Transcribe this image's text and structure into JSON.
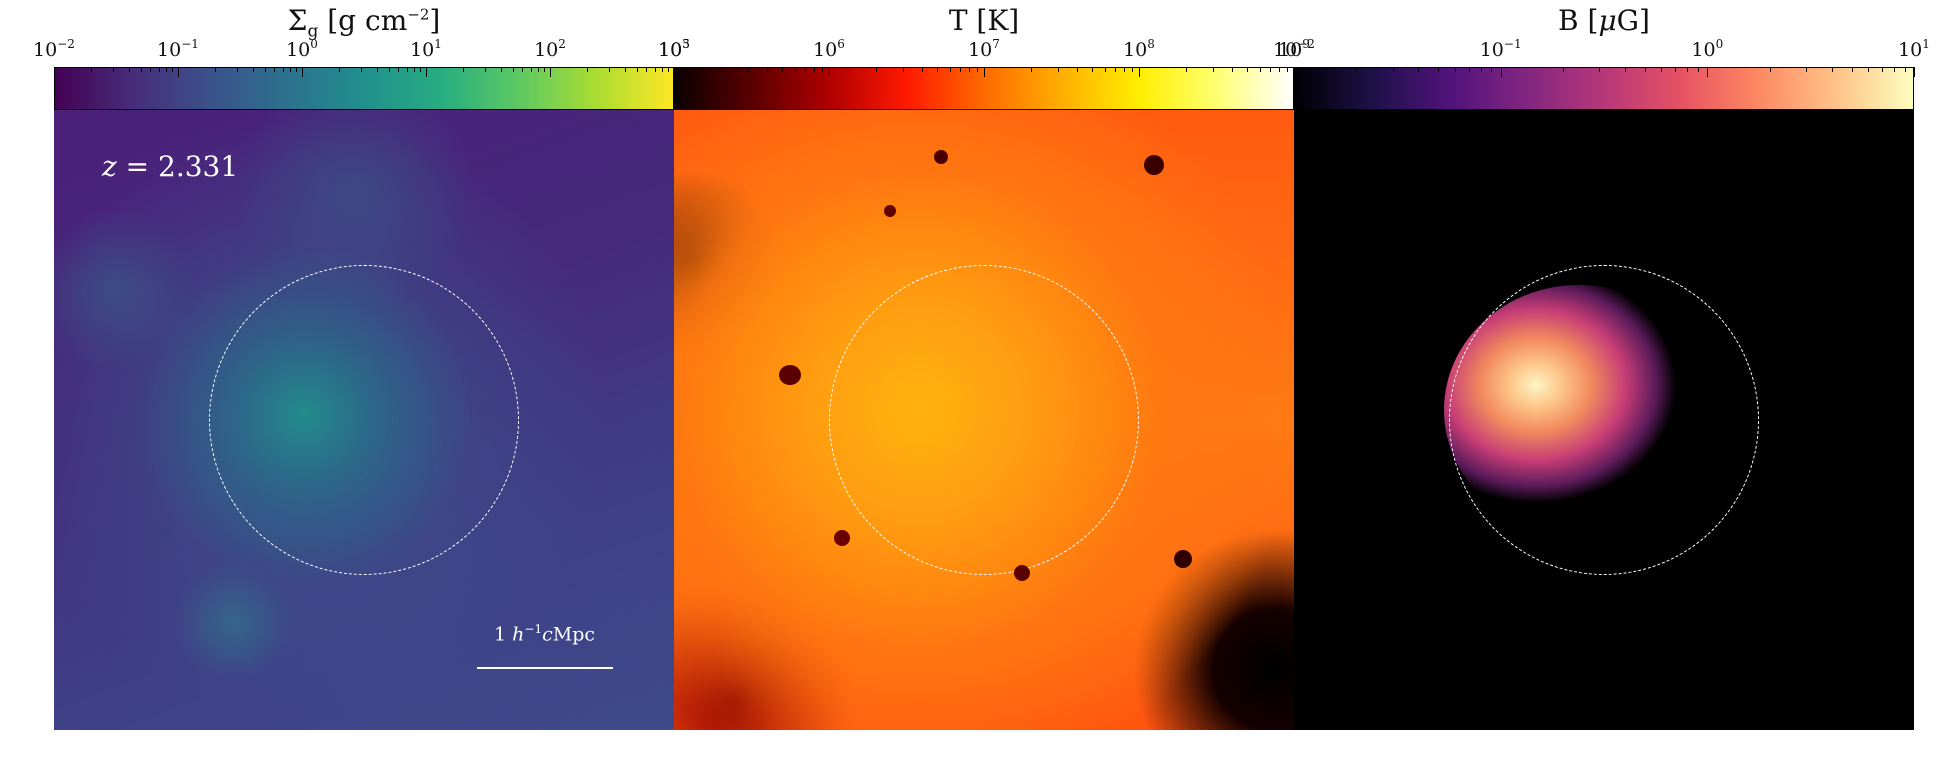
{
  "colorbars": {
    "gas": {
      "title": "Σ",
      "title_sub": "g",
      "title_rest": " [g cm",
      "title_exp": "−2",
      "title_end": "]",
      "ticks": [
        {
          "base": "10",
          "exp": "−2"
        },
        {
          "base": "10",
          "exp": "−1"
        },
        {
          "base": "10",
          "exp": "0"
        },
        {
          "base": "10",
          "exp": "1"
        },
        {
          "base": "10",
          "exp": "2"
        },
        {
          "base": "10",
          "exp": "3"
        }
      ],
      "cmap": "viridis",
      "range": [
        0.01,
        1000
      ]
    },
    "temp": {
      "title": "T [K]",
      "ticks": [
        {
          "base": "10",
          "exp": "5"
        },
        {
          "base": "10",
          "exp": "6"
        },
        {
          "base": "10",
          "exp": "7"
        },
        {
          "base": "10",
          "exp": "8"
        },
        {
          "base": "10",
          "exp": "9"
        }
      ],
      "cmap": "hot",
      "range": [
        100000,
        1000000000
      ]
    },
    "bfield": {
      "title_pre": "B [",
      "title_mu": "μ",
      "title_post": "G]",
      "ticks": [
        {
          "base": "10",
          "exp": "−2"
        },
        {
          "base": "10",
          "exp": "−1"
        },
        {
          "base": "10",
          "exp": "0"
        },
        {
          "base": "10",
          "exp": "1"
        }
      ],
      "cmap": "magma",
      "range": [
        0.01,
        10
      ]
    }
  },
  "annotations": {
    "redshift_z": "z",
    "redshift_eq": " = 2.331",
    "scale_prefix": "1 ",
    "scale_h": "h",
    "scale_exp": "−1",
    "scale_c": "c",
    "scale_unit": "Mpc"
  },
  "colors": {
    "circle": "#ffffff",
    "viridis_low": "#440154",
    "viridis_high": "#fde725",
    "hot_mid": "#ff8a10",
    "magma_core": "#fcf5c4"
  }
}
